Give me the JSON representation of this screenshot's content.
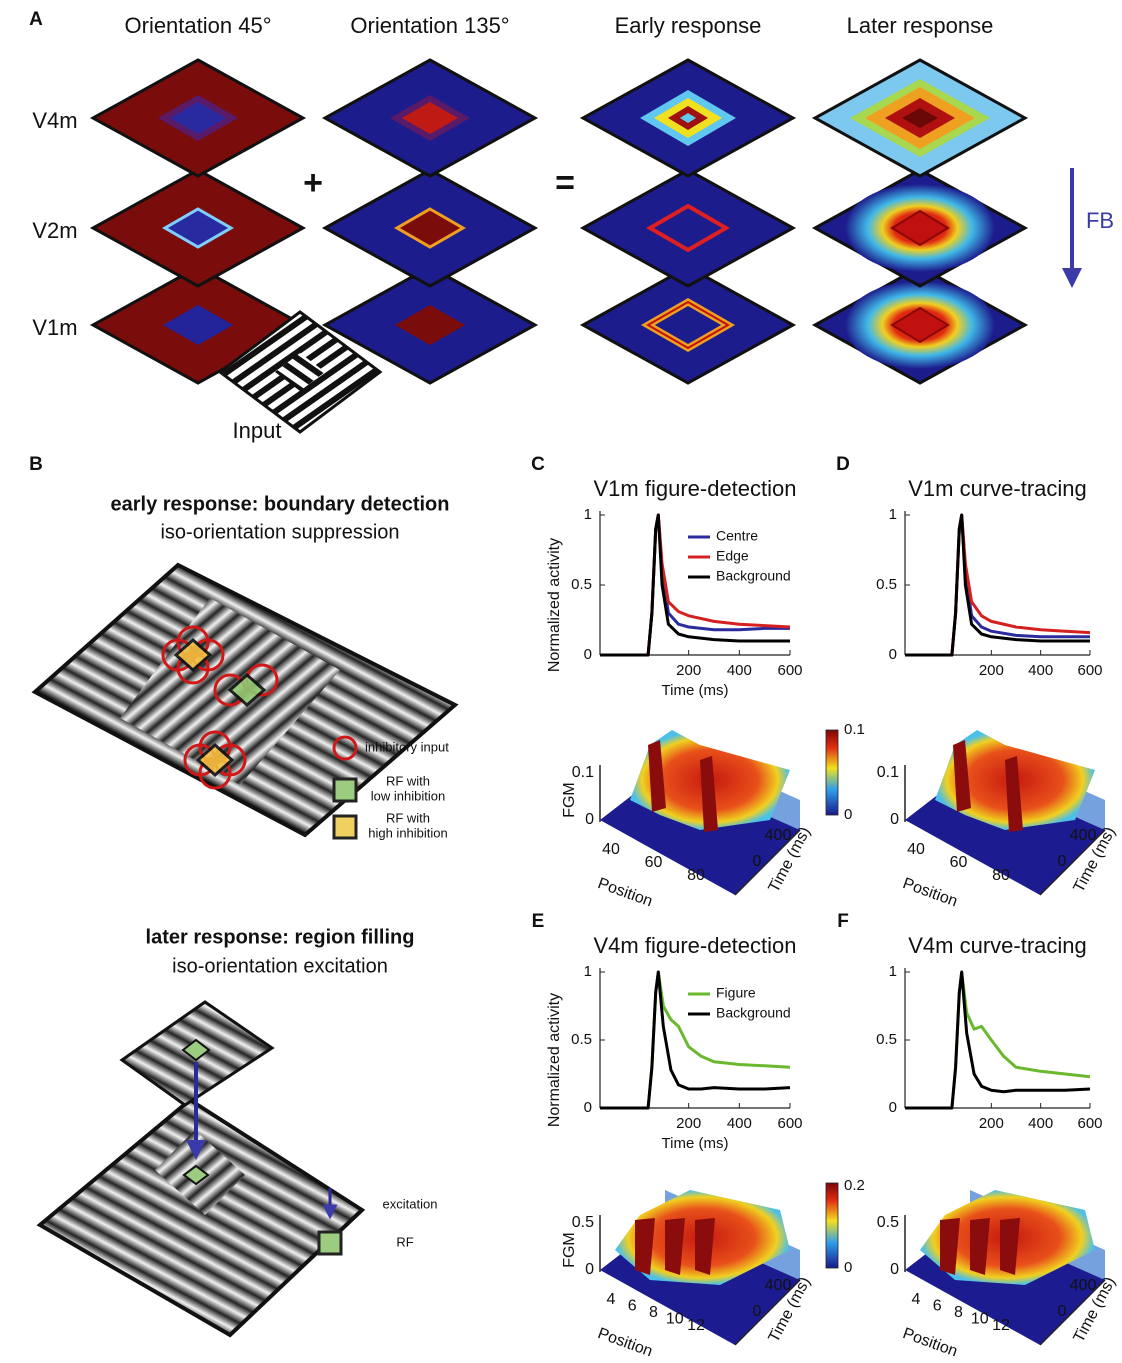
{
  "panel_a": {
    "label": "A",
    "columns": [
      "Orientation 45°",
      "Orientation 135°",
      "Early response",
      "Later response"
    ],
    "rows": [
      "V4m",
      "V2m",
      "V1m"
    ],
    "plus": "+",
    "equals": "=",
    "feedback": "FB",
    "input": "Input"
  },
  "panel_b": {
    "label": "B",
    "early": {
      "title": "early response: boundary detection",
      "subtitle": "iso-orientation suppression",
      "legend": {
        "inhibitory": "inhibitory input",
        "low": [
          "RF with",
          "low inhibition"
        ],
        "high": [
          "RF with",
          "high inhibition"
        ]
      }
    },
    "later": {
      "title": "later response: region filling",
      "subtitle": "iso-orientation excitation",
      "legend": {
        "excitation": "excitation",
        "rf": "RF"
      }
    }
  },
  "chart_data": [
    {
      "type": "line",
      "label": "C",
      "title": "V1m figure-detection",
      "xlabel": "Time (ms)",
      "ylabel": "Normalized activity",
      "x": [
        -150,
        40,
        55,
        70,
        80,
        95,
        120,
        160,
        200,
        300,
        400,
        500,
        600
      ],
      "series": [
        {
          "name": "Centre",
          "color": "#2b2b9e",
          "values": [
            0,
            0,
            0.3,
            0.9,
            1,
            0.6,
            0.3,
            0.22,
            0.2,
            0.18,
            0.18,
            0.19,
            0.19
          ]
        },
        {
          "name": "Edge",
          "color": "#d42020",
          "values": [
            0,
            0,
            0.3,
            0.9,
            1,
            0.65,
            0.38,
            0.31,
            0.28,
            0.24,
            0.22,
            0.21,
            0.2
          ]
        },
        {
          "name": "Background",
          "color": "#000000",
          "values": [
            0,
            0,
            0.3,
            0.9,
            1,
            0.5,
            0.22,
            0.15,
            0.13,
            0.11,
            0.1,
            0.1,
            0.1
          ]
        }
      ],
      "xlim": [
        -150,
        600
      ],
      "ylim": [
        0,
        1
      ],
      "xticks": [
        200,
        400,
        600
      ],
      "yticks": [
        0,
        0.5,
        1
      ]
    },
    {
      "type": "line",
      "label": "D",
      "title": "V1m curve-tracing",
      "x": [
        -150,
        40,
        55,
        70,
        80,
        95,
        120,
        160,
        200,
        300,
        400,
        500,
        600
      ],
      "series": [
        {
          "color": "#2b2b9e",
          "values": [
            0,
            0,
            0.3,
            0.9,
            1,
            0.6,
            0.28,
            0.2,
            0.17,
            0.14,
            0.13,
            0.13,
            0.13
          ]
        },
        {
          "color": "#d42020",
          "values": [
            0,
            0,
            0.3,
            0.9,
            1,
            0.65,
            0.38,
            0.28,
            0.24,
            0.2,
            0.18,
            0.17,
            0.16
          ]
        },
        {
          "color": "#000000",
          "values": [
            0,
            0,
            0.3,
            0.9,
            1,
            0.5,
            0.22,
            0.15,
            0.13,
            0.11,
            0.1,
            0.1,
            0.1
          ]
        }
      ],
      "xlim": [
        -150,
        600
      ],
      "ylim": [
        0,
        1
      ],
      "xticks": [
        200,
        400,
        600
      ],
      "yticks": [
        0,
        0.5,
        1
      ]
    },
    {
      "type": "line",
      "label": "E",
      "title": "V4m figure-detection",
      "xlabel": "Time (ms)",
      "ylabel": "Normalized activity",
      "x": [
        -150,
        40,
        55,
        70,
        80,
        100,
        130,
        160,
        200,
        250,
        300,
        400,
        500,
        600
      ],
      "series": [
        {
          "name": "Figure",
          "color": "#6ab82e",
          "values": [
            0,
            0,
            0.3,
            0.85,
            1,
            0.75,
            0.65,
            0.6,
            0.45,
            0.38,
            0.34,
            0.32,
            0.31,
            0.3
          ]
        },
        {
          "name": "Background",
          "color": "#000000",
          "values": [
            0,
            0,
            0.3,
            0.85,
            1,
            0.6,
            0.28,
            0.17,
            0.14,
            0.14,
            0.15,
            0.14,
            0.14,
            0.15
          ]
        }
      ],
      "xlim": [
        -150,
        600
      ],
      "ylim": [
        0,
        1
      ],
      "xticks": [
        200,
        400,
        600
      ],
      "yticks": [
        0,
        0.5,
        1
      ]
    },
    {
      "type": "line",
      "label": "F",
      "title": "V4m curve-tracing",
      "x": [
        -150,
        40,
        55,
        70,
        80,
        100,
        130,
        160,
        200,
        250,
        300,
        400,
        500,
        600
      ],
      "series": [
        {
          "color": "#6ab82e",
          "values": [
            0,
            0,
            0.3,
            0.85,
            1,
            0.7,
            0.58,
            0.6,
            0.5,
            0.38,
            0.3,
            0.27,
            0.25,
            0.23
          ]
        },
        {
          "color": "#000000",
          "values": [
            0,
            0,
            0.3,
            0.85,
            1,
            0.55,
            0.25,
            0.16,
            0.13,
            0.12,
            0.13,
            0.13,
            0.13,
            0.14
          ]
        }
      ],
      "xlim": [
        -150,
        600
      ],
      "ylim": [
        0,
        1
      ],
      "xticks": [
        200,
        400,
        600
      ],
      "yticks": [
        0,
        0.5,
        1
      ]
    }
  ],
  "surfaces": [
    {
      "z_label": "FGM",
      "z_ticks": [
        0,
        0.1
      ],
      "x_label": "Position",
      "x_ticks": [
        40,
        60,
        80
      ],
      "y_label": "Time (ms)",
      "y_ticks": [
        0,
        400
      ],
      "colorbar_ticks": [
        0,
        0.1
      ]
    },
    {
      "z_ticks": [
        0,
        0.1
      ],
      "x_label": "Position",
      "x_ticks": [
        40,
        60,
        80
      ],
      "y_label": "Time (ms)",
      "y_ticks": [
        0,
        400
      ]
    },
    {
      "z_label": "FGM",
      "z_ticks": [
        0,
        0.5
      ],
      "x_label": "Position",
      "x_ticks": [
        4,
        6,
        8,
        10,
        12
      ],
      "y_label": "Time (ms)",
      "y_ticks": [
        0,
        400
      ],
      "colorbar_ticks": [
        0,
        0.2
      ]
    },
    {
      "z_ticks": [
        0,
        0.5
      ],
      "x_label": "Position",
      "x_ticks": [
        4,
        6,
        8,
        10,
        12
      ],
      "y_label": "Time (ms)",
      "y_ticks": [
        0,
        400
      ]
    }
  ]
}
